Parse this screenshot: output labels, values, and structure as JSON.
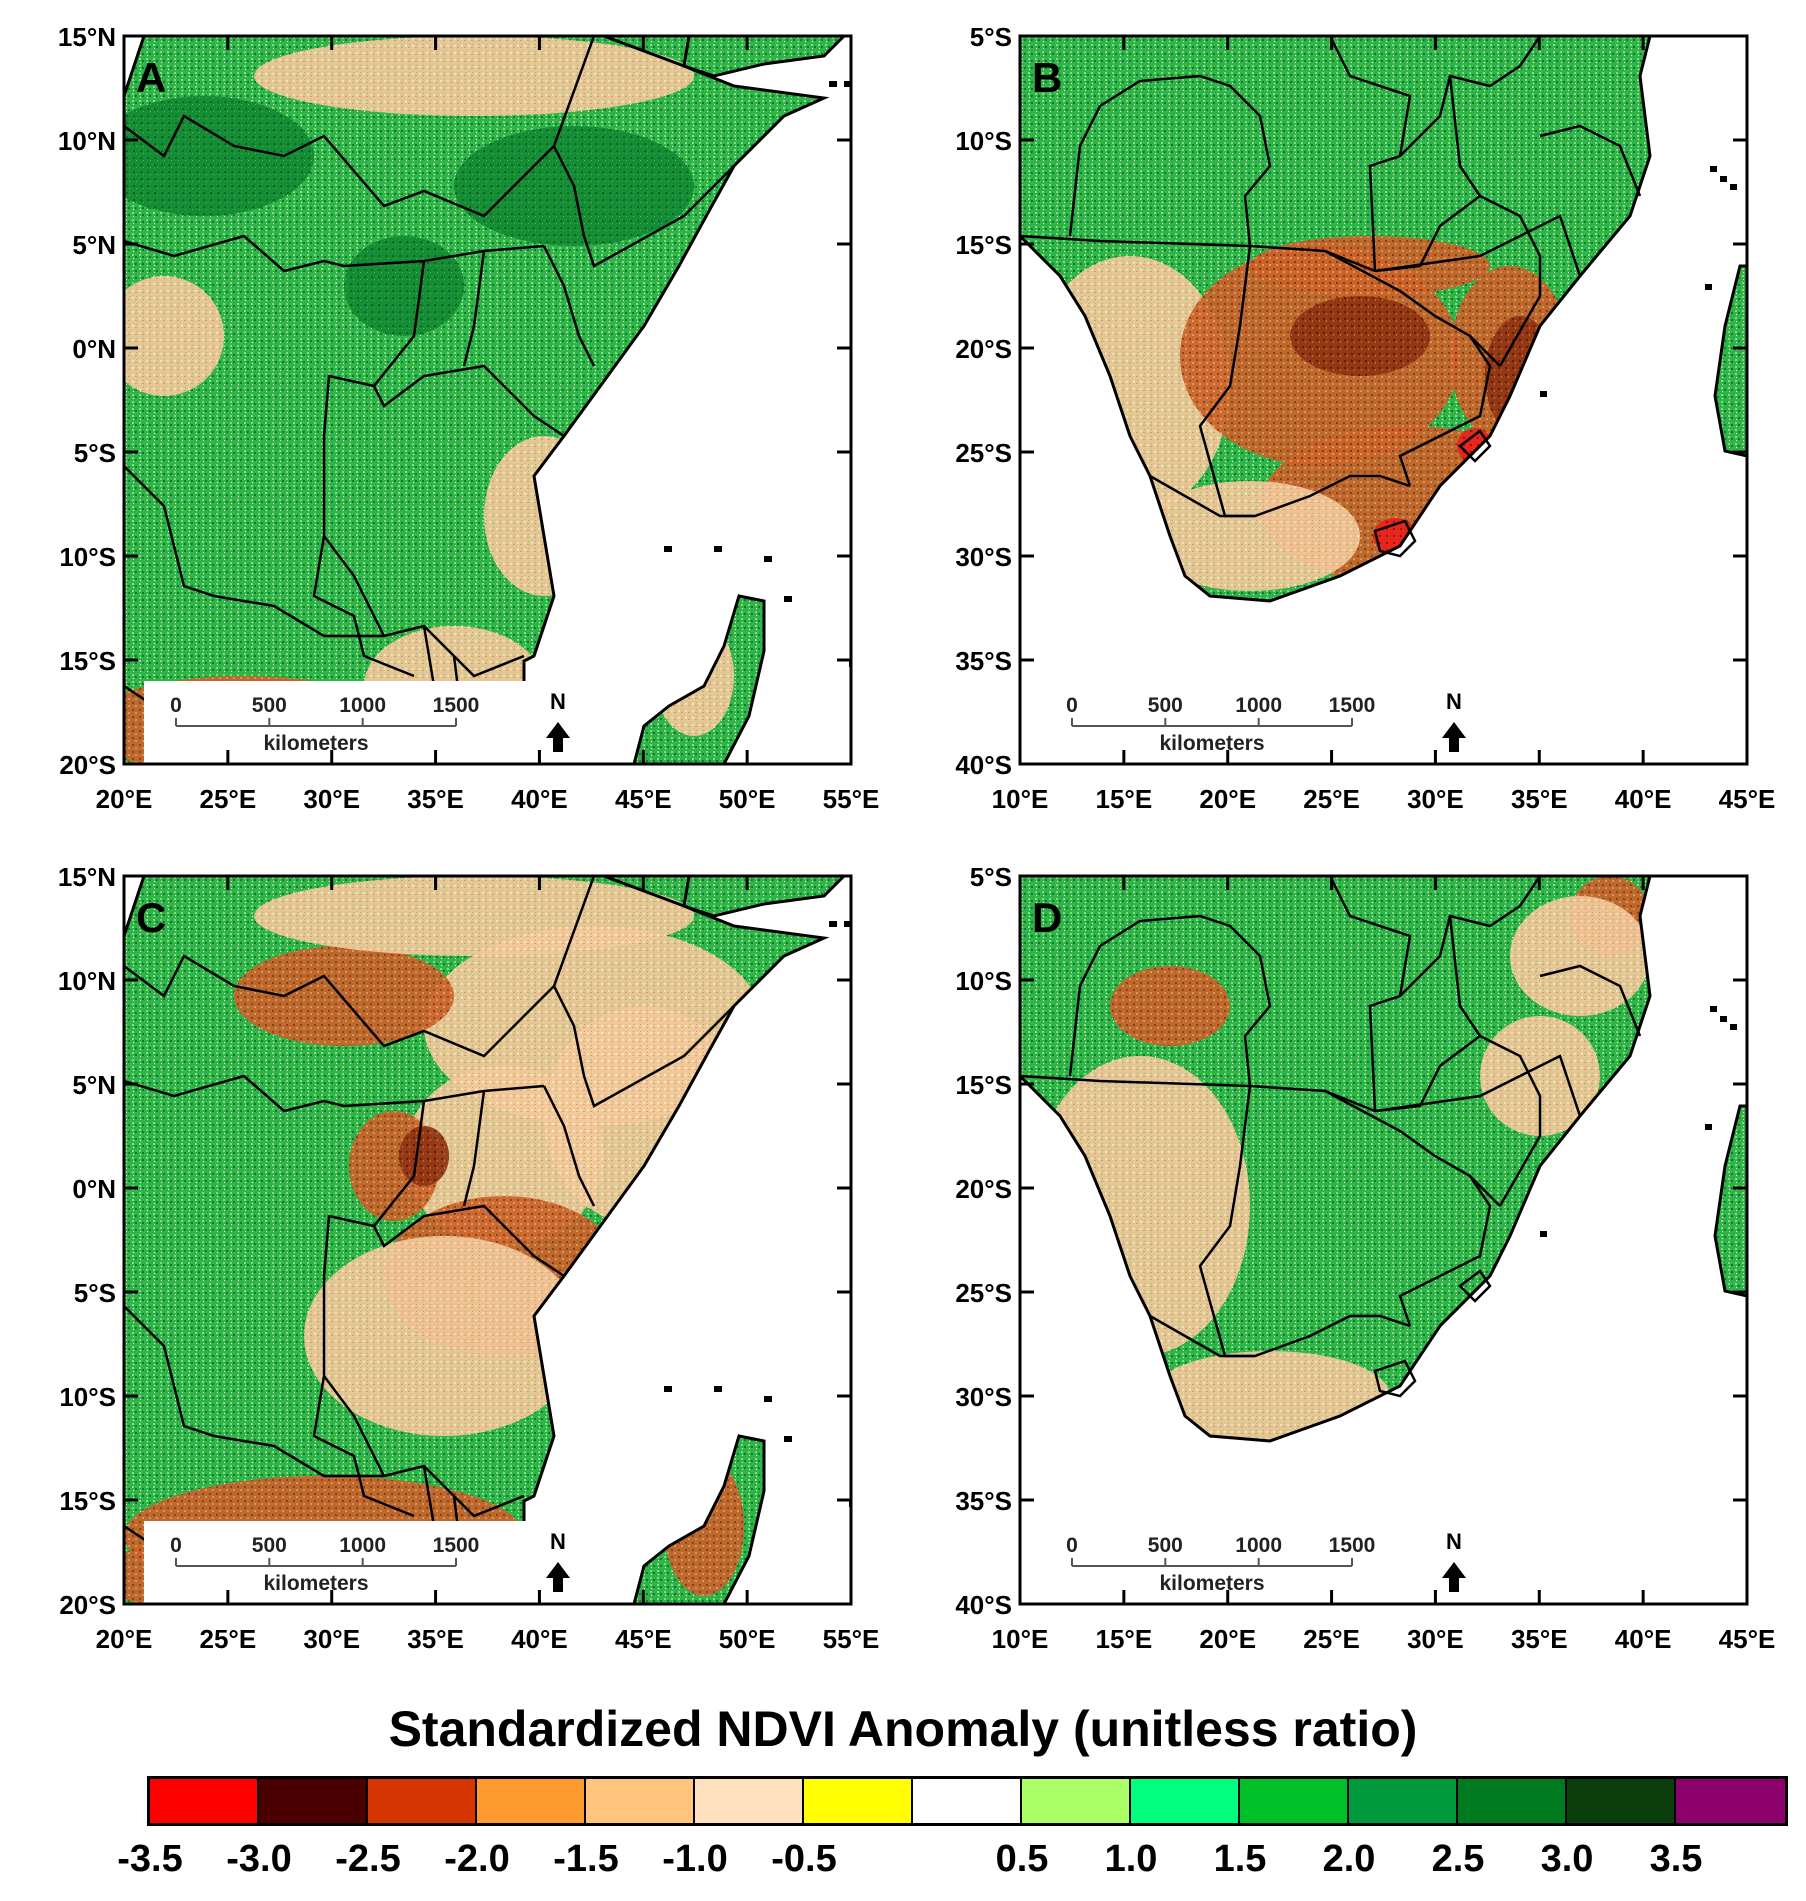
{
  "panels": [
    {
      "label": "A",
      "lat_labels": [
        "15°N",
        "10°N",
        "5°N",
        "0°N",
        "5°S",
        "10°S",
        "15°S",
        "20°S"
      ],
      "lon_labels": [
        "20°E",
        "25°E",
        "30°E",
        "35°E",
        "40°E",
        "45°E",
        "50°E",
        "55°E"
      ],
      "region": "east",
      "anomaly": "mostly-positive"
    },
    {
      "label": "B",
      "lat_labels": [
        "5°S",
        "10°S",
        "15°S",
        "20°S",
        "25°S",
        "30°S",
        "35°S",
        "40°S"
      ],
      "lon_labels": [
        "10°E",
        "15°E",
        "20°E",
        "25°E",
        "30°E",
        "35°E",
        "40°E",
        "45°E"
      ],
      "region": "south",
      "anomaly": "south-negative"
    },
    {
      "label": "C",
      "lat_labels": [
        "15°N",
        "10°N",
        "5°N",
        "0°N",
        "5°S",
        "10°S",
        "15°S",
        "20°S"
      ],
      "lon_labels": [
        "20°E",
        "25°E",
        "30°E",
        "35°E",
        "40°E",
        "45°E",
        "50°E",
        "55°E"
      ],
      "region": "east",
      "anomaly": "east-negative"
    },
    {
      "label": "D",
      "lat_labels": [
        "5°S",
        "10°S",
        "15°S",
        "20°S",
        "25°S",
        "30°S",
        "35°S",
        "40°S"
      ],
      "lon_labels": [
        "10°E",
        "15°E",
        "20°E",
        "25°E",
        "30°E",
        "35°E",
        "40°E",
        "45°E"
      ],
      "region": "south",
      "anomaly": "mostly-positive"
    }
  ],
  "scale_bar": {
    "ticks": [
      "0",
      "500",
      "1000",
      "1500"
    ],
    "unit": "kilometers",
    "north_label": "N"
  },
  "legend": {
    "title": "Standardized NDVI Anomaly (unitless ratio)",
    "colors": [
      "#ff0000",
      "#4a0000",
      "#d63400",
      "#ff9a2e",
      "#ffc47d",
      "#ffe1c0",
      "#ffff00",
      "#ffffff",
      "#aaff66",
      "#00ff7f",
      "#00c02a",
      "#009a3e",
      "#007a1e",
      "#0c3d0c",
      "#8b006b"
    ],
    "labels": [
      "-3.5",
      "-3.0",
      "-2.5",
      "-2.0",
      "-1.5",
      "-1.0",
      "-0.5",
      "0.5",
      "1.0",
      "1.5",
      "2.0",
      "2.5",
      "3.0",
      "3.5"
    ]
  },
  "colors": {
    "land_green": "#2fb34a",
    "land_dark_green": "#0e7d2c",
    "land_tan": "#f3c89a",
    "land_brown": "#c9632a",
    "land_red": "#e8201a",
    "border": "#000000"
  }
}
